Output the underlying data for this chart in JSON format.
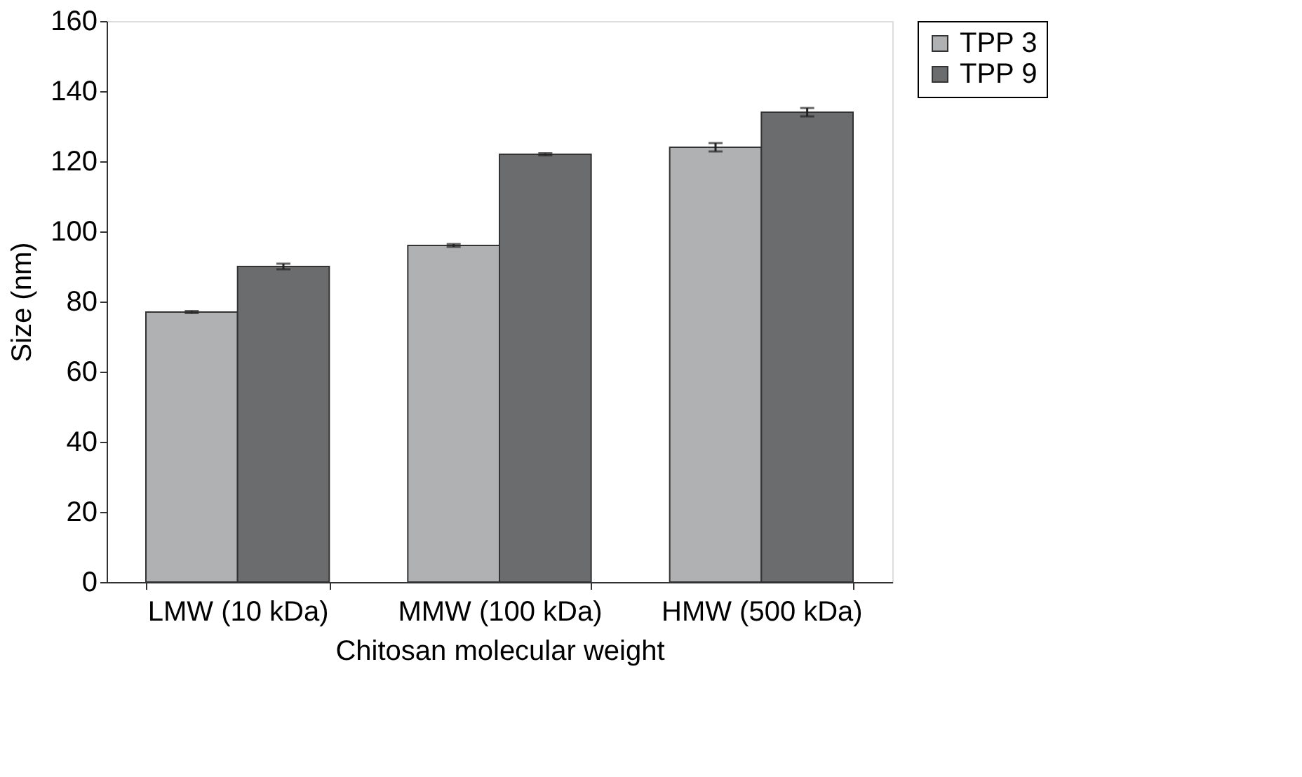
{
  "chart_data": {
    "type": "bar",
    "xlabel": "Chitosan molecular weight",
    "ylabel": "Size (nm)",
    "categories": [
      "LMW (10 kDa)",
      "MMW (100 kDa)",
      "HMW (500 kDa)"
    ],
    "series": [
      {
        "name": "TPP 3",
        "color": "#b0b1b3",
        "values": [
          77,
          96,
          124
        ],
        "errors": [
          0.3,
          0.4,
          1.2
        ]
      },
      {
        "name": "TPP 9",
        "color": "#6b6c6e",
        "values": [
          90,
          122,
          134
        ],
        "errors": [
          0.8,
          0.3,
          1.2
        ]
      }
    ],
    "ylim": [
      0,
      160
    ],
    "yticks": [
      0,
      20,
      40,
      60,
      80,
      100,
      120,
      140,
      160
    ],
    "grid": false,
    "legend": "right"
  }
}
